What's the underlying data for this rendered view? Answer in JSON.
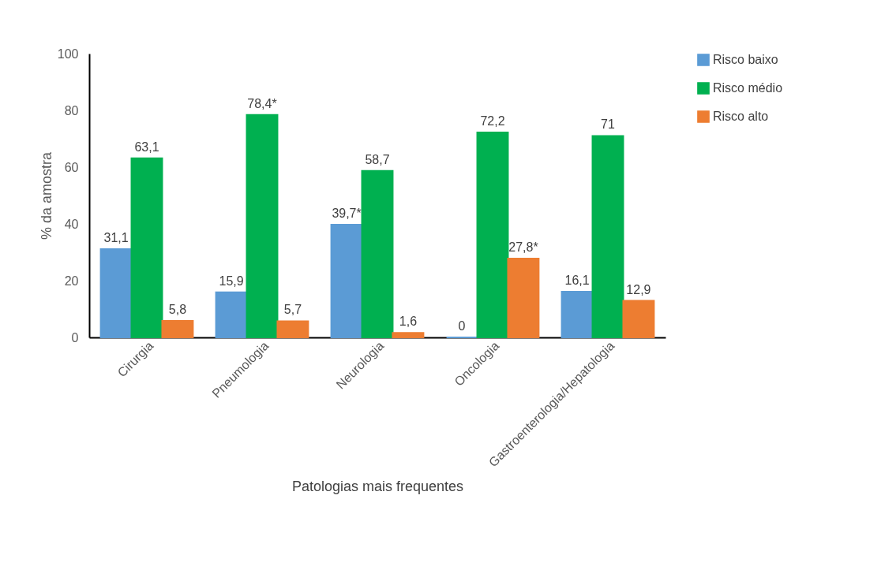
{
  "chart_data": {
    "type": "bar",
    "xlabel": "Patologias mais frequentes",
    "ylabel": "% da amostra",
    "categories": [
      "Cirurgia",
      "Pneumologia",
      "Neurologia",
      "Oncologia",
      "Gastroenterologia/Hepatologia"
    ],
    "series": [
      {
        "name": "Risco baixo",
        "color": "#5b9bd5",
        "values": [
          31.1,
          15.9,
          39.7,
          0,
          16.1
        ],
        "value_labels": [
          "31,1",
          "15,9",
          "39,7*",
          "0",
          "16,1"
        ]
      },
      {
        "name": "Risco médio",
        "color": "#00b050",
        "values": [
          63.1,
          78.4,
          58.7,
          72.2,
          71
        ],
        "value_labels": [
          "63,1",
          "78,4*",
          "58,7",
          "72,2",
          "71"
        ]
      },
      {
        "name": "Risco alto",
        "color": "#ed7d31",
        "values": [
          5.8,
          5.7,
          1.6,
          27.8,
          12.9
        ],
        "value_labels": [
          "5,8",
          "5,7",
          "1,6",
          "27,8*",
          "12,9"
        ]
      }
    ],
    "ylim": [
      0,
      100
    ],
    "yticks": [
      0,
      20,
      40,
      60,
      80,
      100
    ],
    "grid": false,
    "legend": "right"
  }
}
